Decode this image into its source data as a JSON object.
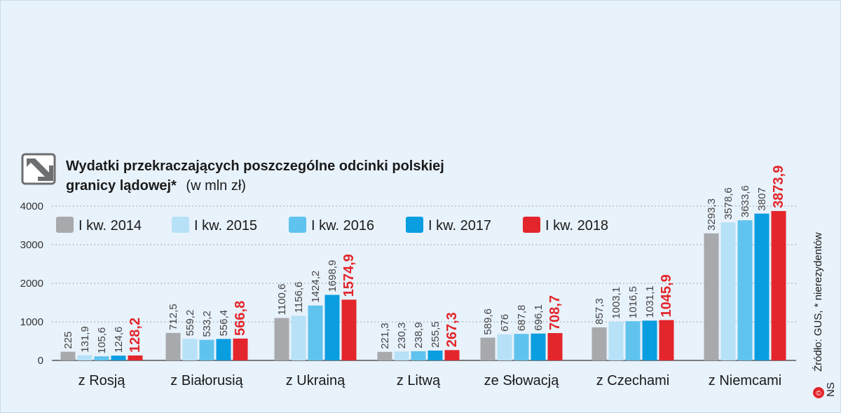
{
  "chart_data": {
    "type": "bar",
    "title": "Wydatki przekraczających poszczególne odcinki polskiej granicy lądowej*",
    "title_line1": "Wydatki przekraczających poszczególne odcinki polskiej",
    "title_line2": "granicy lądowej*",
    "subtitle": "(w mln zł)",
    "source": "Źródło: GUS, * nierezydentów",
    "credit": "NS",
    "ylim": [
      0,
      4000
    ],
    "yticks": [
      "0",
      "1000",
      "2000",
      "3000",
      "4000"
    ],
    "grid": true,
    "legend_position": "top-left",
    "categories": [
      "z Rosją",
      "z Białorusią",
      "z Ukrainą",
      "z Litwą",
      "ze Słowacją",
      "z Czechami",
      "z Niemcami"
    ],
    "series": [
      {
        "name": "I kw. 2014",
        "color": "#a7a9ac",
        "values": [
          225,
          712.5,
          1100.6,
          221.3,
          589.6,
          857.3,
          3293.3
        ],
        "labels": [
          "225",
          "712,5",
          "1100,6",
          "221,3",
          "589,6",
          "857,3",
          "3293,3"
        ]
      },
      {
        "name": "I kw. 2015",
        "color": "#b6e1f7",
        "values": [
          131.9,
          559.2,
          1156.6,
          230.3,
          676,
          1003.1,
          3578.6
        ],
        "labels": [
          "131,9",
          "559,2",
          "1156,6",
          "230,3",
          "676",
          "1003,1",
          "3578,6"
        ]
      },
      {
        "name": "I kw. 2016",
        "color": "#5fc3ee",
        "values": [
          105.6,
          533.2,
          1424.2,
          238.9,
          687.8,
          1016.5,
          3633.6
        ],
        "labels": [
          "105,6",
          "533,2",
          "1424,2",
          "238,9",
          "687,8",
          "1016,5",
          "3633,6"
        ]
      },
      {
        "name": "I kw. 2017",
        "color": "#0a9de0",
        "values": [
          124.6,
          556.4,
          1698.9,
          255.5,
          696.1,
          1031.1,
          3807
        ],
        "labels": [
          "124,6",
          "556,4",
          "1698,9",
          "255,5",
          "696,1",
          "1031,1",
          "3807"
        ]
      },
      {
        "name": "I kw. 2018",
        "color": "#e3262b",
        "values": [
          128.2,
          566.8,
          1574.9,
          267.3,
          708.7,
          1045.9,
          3873.9
        ],
        "labels": [
          "128,2",
          "566,8",
          "1574,9",
          "267,3",
          "708,7",
          "1045,9",
          "3873,9"
        ]
      }
    ]
  }
}
